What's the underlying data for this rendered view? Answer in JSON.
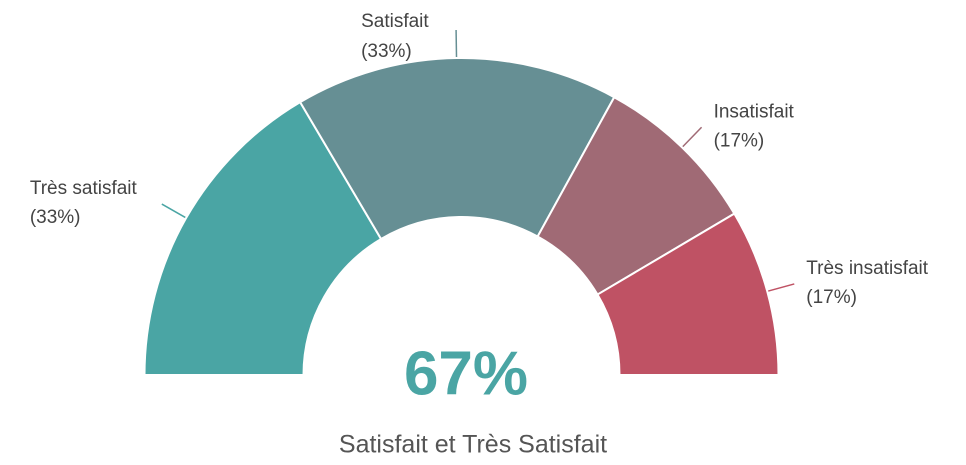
{
  "chart_data": {
    "type": "semi-donut",
    "categories": [
      "Très satisfait",
      "Satisfait",
      "Insatisfait",
      "Très insatisfait"
    ],
    "values": [
      33,
      33,
      17,
      17
    ],
    "value_labels": [
      "(33%)",
      "(33%)",
      "(17%)",
      "(17%)"
    ],
    "colors": [
      "#4aa5a4",
      "#668f94",
      "#a06a75",
      "#bf5264"
    ],
    "center_label": "67%",
    "subtitle": "Satisfait et Très Satisfait"
  }
}
